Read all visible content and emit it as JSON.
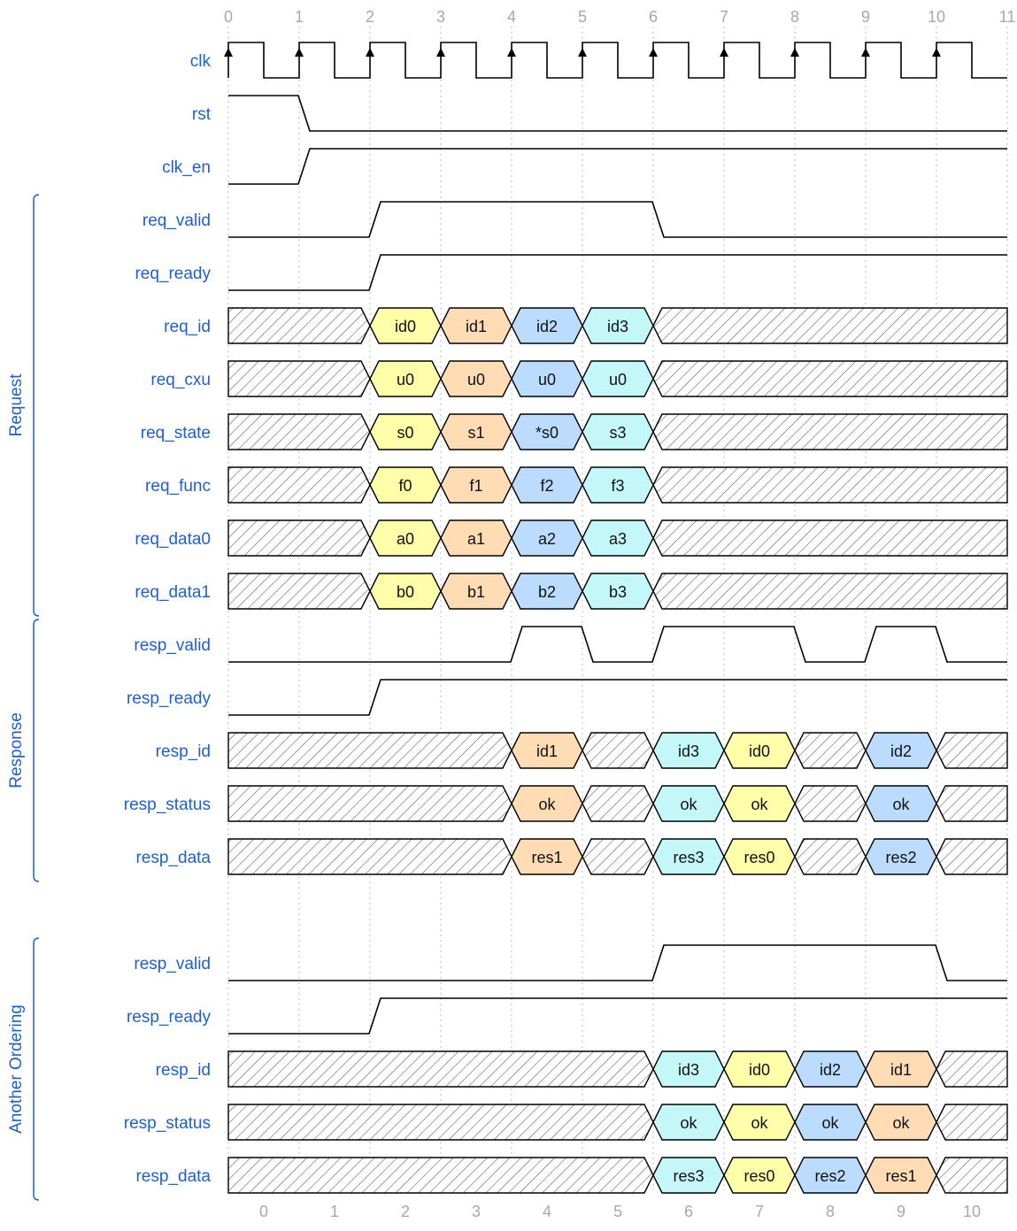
{
  "timeline": {
    "top_ticks": [
      "0",
      "1",
      "2",
      "3",
      "4",
      "5",
      "6",
      "7",
      "8",
      "9",
      "10",
      "11"
    ],
    "bottom_ticks": [
      "0",
      "1",
      "2",
      "3",
      "4",
      "5",
      "6",
      "7",
      "8",
      "9",
      "10"
    ]
  },
  "colors": {
    "yellow": "#ffffaa",
    "orange": "#ffdcb4",
    "blue": "#bcdcff",
    "cyan": "#c4f8f8",
    "label": "#1f5fd6"
  },
  "groups": [
    {
      "name": "Request",
      "from": 3,
      "to": 10
    },
    {
      "name": "Response",
      "from": 11,
      "to": 15
    },
    {
      "name": "Another Ordering",
      "from": 17,
      "to": 21
    }
  ],
  "signals": [
    {
      "name": "clk",
      "type": "clock"
    },
    {
      "name": "rst",
      "type": "bit",
      "levels": [
        1,
        0,
        0,
        0,
        0,
        0,
        0,
        0,
        0,
        0,
        0
      ]
    },
    {
      "name": "clk_en",
      "type": "bit",
      "levels": [
        0,
        1,
        1,
        1,
        1,
        1,
        1,
        1,
        1,
        1,
        1
      ]
    },
    {
      "name": "req_valid",
      "type": "bit",
      "levels": [
        0,
        0,
        1,
        1,
        1,
        1,
        0,
        0,
        0,
        0,
        0
      ]
    },
    {
      "name": "req_ready",
      "type": "bit",
      "levels": [
        0,
        0,
        1,
        1,
        1,
        1,
        1,
        1,
        1,
        1,
        1
      ]
    },
    {
      "name": "req_id",
      "type": "bus",
      "segments": [
        {
          "from": 0,
          "to": 2,
          "fill": "x"
        },
        {
          "from": 2,
          "to": 3,
          "fill": "yellow",
          "text": "id0"
        },
        {
          "from": 3,
          "to": 4,
          "fill": "orange",
          "text": "id1"
        },
        {
          "from": 4,
          "to": 5,
          "fill": "blue",
          "text": "id2"
        },
        {
          "from": 5,
          "to": 6,
          "fill": "cyan",
          "text": "id3"
        },
        {
          "from": 6,
          "to": 11,
          "fill": "x"
        }
      ]
    },
    {
      "name": "req_cxu",
      "type": "bus",
      "segments": [
        {
          "from": 0,
          "to": 2,
          "fill": "x"
        },
        {
          "from": 2,
          "to": 3,
          "fill": "yellow",
          "text": "u0"
        },
        {
          "from": 3,
          "to": 4,
          "fill": "orange",
          "text": "u0"
        },
        {
          "from": 4,
          "to": 5,
          "fill": "blue",
          "text": "u0"
        },
        {
          "from": 5,
          "to": 6,
          "fill": "cyan",
          "text": "u0"
        },
        {
          "from": 6,
          "to": 11,
          "fill": "x"
        }
      ]
    },
    {
      "name": "req_state",
      "type": "bus",
      "segments": [
        {
          "from": 0,
          "to": 2,
          "fill": "x"
        },
        {
          "from": 2,
          "to": 3,
          "fill": "yellow",
          "text": "s0"
        },
        {
          "from": 3,
          "to": 4,
          "fill": "orange",
          "text": "s1"
        },
        {
          "from": 4,
          "to": 5,
          "fill": "blue",
          "text": "*s0"
        },
        {
          "from": 5,
          "to": 6,
          "fill": "cyan",
          "text": "s3"
        },
        {
          "from": 6,
          "to": 11,
          "fill": "x"
        }
      ]
    },
    {
      "name": "req_func",
      "type": "bus",
      "segments": [
        {
          "from": 0,
          "to": 2,
          "fill": "x"
        },
        {
          "from": 2,
          "to": 3,
          "fill": "yellow",
          "text": "f0"
        },
        {
          "from": 3,
          "to": 4,
          "fill": "orange",
          "text": "f1"
        },
        {
          "from": 4,
          "to": 5,
          "fill": "blue",
          "text": "f2"
        },
        {
          "from": 5,
          "to": 6,
          "fill": "cyan",
          "text": "f3"
        },
        {
          "from": 6,
          "to": 11,
          "fill": "x"
        }
      ]
    },
    {
      "name": "req_data0",
      "type": "bus",
      "segments": [
        {
          "from": 0,
          "to": 2,
          "fill": "x"
        },
        {
          "from": 2,
          "to": 3,
          "fill": "yellow",
          "text": "a0"
        },
        {
          "from": 3,
          "to": 4,
          "fill": "orange",
          "text": "a1"
        },
        {
          "from": 4,
          "to": 5,
          "fill": "blue",
          "text": "a2"
        },
        {
          "from": 5,
          "to": 6,
          "fill": "cyan",
          "text": "a3"
        },
        {
          "from": 6,
          "to": 11,
          "fill": "x"
        }
      ]
    },
    {
      "name": "req_data1",
      "type": "bus",
      "segments": [
        {
          "from": 0,
          "to": 2,
          "fill": "x"
        },
        {
          "from": 2,
          "to": 3,
          "fill": "yellow",
          "text": "b0"
        },
        {
          "from": 3,
          "to": 4,
          "fill": "orange",
          "text": "b1"
        },
        {
          "from": 4,
          "to": 5,
          "fill": "blue",
          "text": "b2"
        },
        {
          "from": 5,
          "to": 6,
          "fill": "cyan",
          "text": "b3"
        },
        {
          "from": 6,
          "to": 11,
          "fill": "x"
        }
      ]
    },
    {
      "name": "resp_valid",
      "type": "bit",
      "levels": [
        0,
        0,
        0,
        0,
        1,
        0,
        1,
        1,
        0,
        1,
        0
      ]
    },
    {
      "name": "resp_ready",
      "type": "bit",
      "levels": [
        0,
        0,
        1,
        1,
        1,
        1,
        1,
        1,
        1,
        1,
        1
      ]
    },
    {
      "name": "resp_id",
      "type": "bus",
      "segments": [
        {
          "from": 0,
          "to": 4,
          "fill": "x"
        },
        {
          "from": 4,
          "to": 5,
          "fill": "orange",
          "text": "id1"
        },
        {
          "from": 5,
          "to": 6,
          "fill": "x"
        },
        {
          "from": 6,
          "to": 7,
          "fill": "cyan",
          "text": "id3"
        },
        {
          "from": 7,
          "to": 8,
          "fill": "yellow",
          "text": "id0"
        },
        {
          "from": 8,
          "to": 9,
          "fill": "x"
        },
        {
          "from": 9,
          "to": 10,
          "fill": "blue",
          "text": "id2"
        },
        {
          "from": 10,
          "to": 11,
          "fill": "x"
        }
      ]
    },
    {
      "name": "resp_status",
      "type": "bus",
      "segments": [
        {
          "from": 0,
          "to": 4,
          "fill": "x"
        },
        {
          "from": 4,
          "to": 5,
          "fill": "orange",
          "text": "ok"
        },
        {
          "from": 5,
          "to": 6,
          "fill": "x"
        },
        {
          "from": 6,
          "to": 7,
          "fill": "cyan",
          "text": "ok"
        },
        {
          "from": 7,
          "to": 8,
          "fill": "yellow",
          "text": "ok"
        },
        {
          "from": 8,
          "to": 9,
          "fill": "x"
        },
        {
          "from": 9,
          "to": 10,
          "fill": "blue",
          "text": "ok"
        },
        {
          "from": 10,
          "to": 11,
          "fill": "x"
        }
      ]
    },
    {
      "name": "resp_data",
      "type": "bus",
      "segments": [
        {
          "from": 0,
          "to": 4,
          "fill": "x"
        },
        {
          "from": 4,
          "to": 5,
          "fill": "orange",
          "text": "res1"
        },
        {
          "from": 5,
          "to": 6,
          "fill": "x"
        },
        {
          "from": 6,
          "to": 7,
          "fill": "cyan",
          "text": "res3"
        },
        {
          "from": 7,
          "to": 8,
          "fill": "yellow",
          "text": "res0"
        },
        {
          "from": 8,
          "to": 9,
          "fill": "x"
        },
        {
          "from": 9,
          "to": 10,
          "fill": "blue",
          "text": "res2"
        },
        {
          "from": 10,
          "to": 11,
          "fill": "x"
        }
      ]
    },
    {
      "name": "",
      "type": "gap"
    },
    {
      "name": "resp_valid",
      "type": "bit",
      "levels": [
        0,
        0,
        0,
        0,
        0,
        0,
        1,
        1,
        1,
        1,
        0
      ]
    },
    {
      "name": "resp_ready",
      "type": "bit",
      "levels": [
        0,
        0,
        1,
        1,
        1,
        1,
        1,
        1,
        1,
        1,
        1
      ]
    },
    {
      "name": "resp_id",
      "type": "bus",
      "segments": [
        {
          "from": 0,
          "to": 6,
          "fill": "x"
        },
        {
          "from": 6,
          "to": 7,
          "fill": "cyan",
          "text": "id3"
        },
        {
          "from": 7,
          "to": 8,
          "fill": "yellow",
          "text": "id0"
        },
        {
          "from": 8,
          "to": 9,
          "fill": "blue",
          "text": "id2"
        },
        {
          "from": 9,
          "to": 10,
          "fill": "orange",
          "text": "id1"
        },
        {
          "from": 10,
          "to": 11,
          "fill": "x"
        }
      ]
    },
    {
      "name": "resp_status",
      "type": "bus",
      "segments": [
        {
          "from": 0,
          "to": 6,
          "fill": "x"
        },
        {
          "from": 6,
          "to": 7,
          "fill": "cyan",
          "text": "ok"
        },
        {
          "from": 7,
          "to": 8,
          "fill": "yellow",
          "text": "ok"
        },
        {
          "from": 8,
          "to": 9,
          "fill": "blue",
          "text": "ok"
        },
        {
          "from": 9,
          "to": 10,
          "fill": "orange",
          "text": "ok"
        },
        {
          "from": 10,
          "to": 11,
          "fill": "x"
        }
      ]
    },
    {
      "name": "resp_data",
      "type": "bus",
      "segments": [
        {
          "from": 0,
          "to": 6,
          "fill": "x"
        },
        {
          "from": 6,
          "to": 7,
          "fill": "cyan",
          "text": "res3"
        },
        {
          "from": 7,
          "to": 8,
          "fill": "yellow",
          "text": "res0"
        },
        {
          "from": 8,
          "to": 9,
          "fill": "blue",
          "text": "res2"
        },
        {
          "from": 9,
          "to": 10,
          "fill": "orange",
          "text": "res1"
        },
        {
          "from": 10,
          "to": 11,
          "fill": "x"
        }
      ]
    }
  ]
}
